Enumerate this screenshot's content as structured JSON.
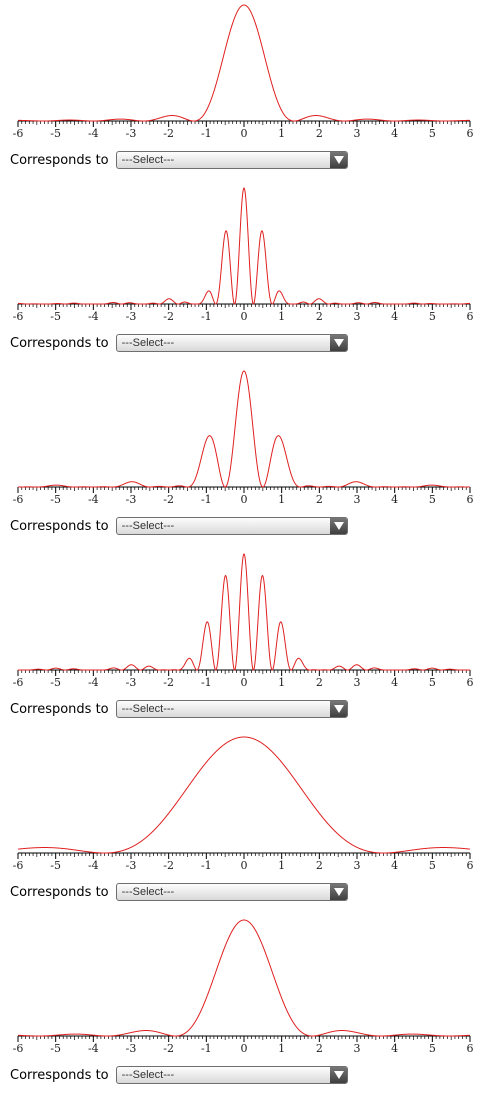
{
  "labels": {
    "corresponds": "Corresponds to",
    "select_placeholder": "---Select---"
  },
  "icons": {
    "dropdown": "chevron-down-icon"
  },
  "colors": {
    "curve": "#e02020",
    "axis": "#000000"
  },
  "chart_data": [
    {
      "type": "line",
      "title": "",
      "xlabel": "",
      "ylabel": "",
      "xlim": [
        -6,
        6
      ],
      "ylim": [
        0,
        1
      ],
      "grid": false,
      "x_ticks": [
        "-6",
        "-5",
        "-4",
        "-3",
        "-2",
        "-1",
        "0",
        "1",
        "2",
        "3",
        "4",
        "5",
        "6"
      ],
      "series": [
        {
          "kind": "single-slit",
          "width": 0.75
        }
      ]
    },
    {
      "type": "line",
      "title": "",
      "xlabel": "",
      "ylabel": "",
      "xlim": [
        -6,
        6
      ],
      "ylim": [
        0,
        1
      ],
      "grid": false,
      "x_ticks": [
        "-6",
        "-5",
        "-4",
        "-3",
        "-2",
        "-1",
        "0",
        "1",
        "2",
        "3",
        "4",
        "5",
        "6"
      ],
      "series": [
        {
          "kind": "multi-slit",
          "width": 0.75,
          "slits": 2,
          "spacing": 4.0
        }
      ]
    },
    {
      "type": "line",
      "title": "",
      "xlabel": "",
      "ylabel": "",
      "xlim": [
        -6,
        6
      ],
      "ylim": [
        0,
        1
      ],
      "grid": false,
      "x_ticks": [
        "-6",
        "-5",
        "-4",
        "-3",
        "-2",
        "-1",
        "0",
        "1",
        "2",
        "3",
        "4",
        "5",
        "6"
      ],
      "series": [
        {
          "kind": "multi-slit",
          "width": 0.5,
          "slits": 2,
          "spacing": 2.0
        }
      ]
    },
    {
      "type": "line",
      "title": "",
      "xlabel": "",
      "ylabel": "",
      "xlim": [
        -6,
        6
      ],
      "ylim": [
        0,
        1
      ],
      "grid": false,
      "x_ticks": [
        "-6",
        "-5",
        "-4",
        "-3",
        "-2",
        "-1",
        "0",
        "1",
        "2",
        "3",
        "4",
        "5",
        "6"
      ],
      "series": [
        {
          "kind": "multi-slit",
          "width": 0.5,
          "slits": 2,
          "spacing": 4.0
        }
      ]
    },
    {
      "type": "line",
      "title": "",
      "xlabel": "",
      "ylabel": "",
      "xlim": [
        -6,
        6
      ],
      "ylim": [
        0,
        1
      ],
      "grid": false,
      "x_ticks": [
        "-6",
        "-5",
        "-4",
        "-3",
        "-2",
        "-1",
        "0",
        "1",
        "2",
        "3",
        "4",
        "5",
        "6"
      ],
      "series": [
        {
          "kind": "single-slit",
          "width": 0.27
        }
      ]
    },
    {
      "type": "line",
      "title": "",
      "xlabel": "",
      "ylabel": "",
      "xlim": [
        -6,
        6
      ],
      "ylim": [
        0,
        1
      ],
      "grid": false,
      "x_ticks": [
        "-6",
        "-5",
        "-4",
        "-3",
        "-2",
        "-1",
        "0",
        "1",
        "2",
        "3",
        "4",
        "5",
        "6"
      ],
      "series": [
        {
          "kind": "single-slit",
          "width": 0.55
        }
      ]
    }
  ]
}
